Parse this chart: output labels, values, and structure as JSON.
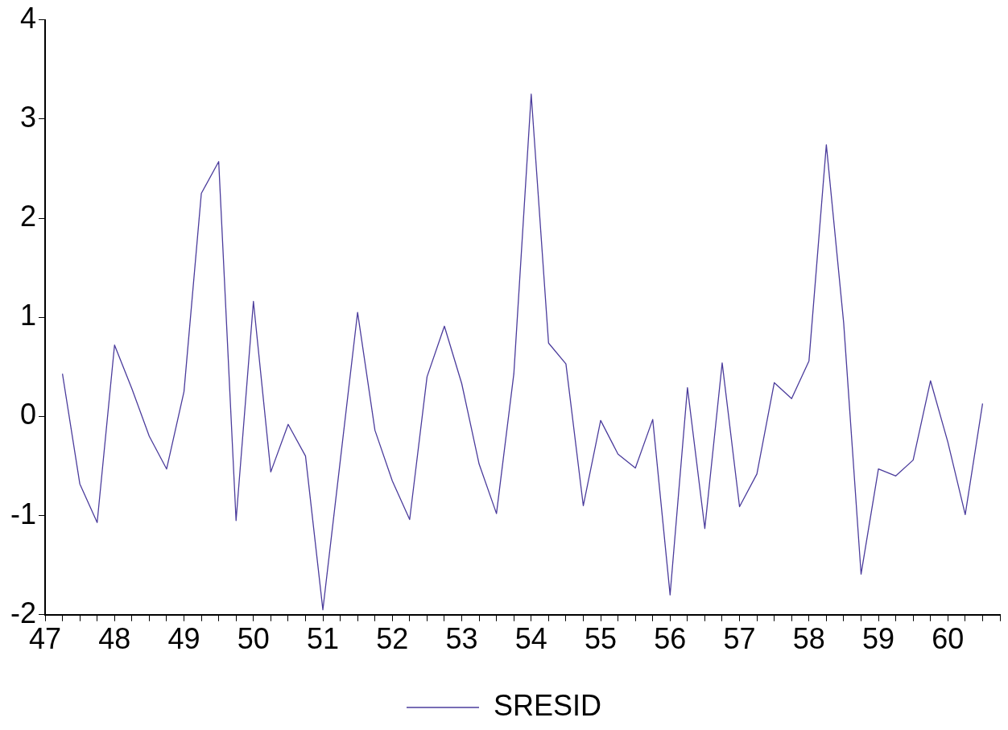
{
  "chart_data": {
    "type": "line",
    "x": [
      47.25,
      47.5,
      47.75,
      48,
      48.25,
      48.5,
      48.75,
      49,
      49.25,
      49.5,
      49.75,
      50,
      50.25,
      50.5,
      50.75,
      51,
      51.25,
      51.5,
      51.75,
      52,
      52.25,
      52.5,
      52.75,
      53,
      53.25,
      53.5,
      53.75,
      54,
      54.25,
      54.5,
      54.75,
      55,
      55.25,
      55.5,
      55.75,
      56,
      56.25,
      56.5,
      56.75,
      57,
      57.25,
      57.5,
      57.75,
      58,
      58.25,
      58.5,
      58.75,
      59,
      59.25,
      59.5,
      59.75,
      60,
      60.25,
      60.5
    ],
    "series": [
      {
        "name": "SRESID",
        "color": "#4b3c9c",
        "values": [
          0.43,
          -0.68,
          -1.07,
          0.72,
          0.28,
          -0.2,
          -0.53,
          0.25,
          2.25,
          2.57,
          -1.05,
          1.16,
          -0.56,
          -0.08,
          -0.4,
          -1.95,
          -0.45,
          1.05,
          -0.14,
          -0.65,
          -1.04,
          0.4,
          0.91,
          0.33,
          -0.48,
          -0.98,
          0.43,
          3.25,
          0.74,
          0.53,
          -0.9,
          -0.04,
          -0.38,
          -0.52,
          -0.03,
          -1.8,
          0.29,
          -1.13,
          0.54,
          -0.91,
          -0.58,
          0.34,
          0.18,
          0.56,
          2.74,
          0.94,
          -1.59,
          -0.53,
          -0.6,
          -0.44,
          0.36,
          -0.26,
          -0.99,
          0.13
        ]
      }
    ],
    "xlim": [
      47,
      60.75
    ],
    "xticks": [
      {
        "value": 47,
        "label": "47"
      },
      {
        "value": 47.25,
        "label": null
      },
      {
        "value": 47.5,
        "label": null
      },
      {
        "value": 47.75,
        "label": null
      },
      {
        "value": 48,
        "label": "48"
      },
      {
        "value": 48.25,
        "label": null
      },
      {
        "value": 48.5,
        "label": null
      },
      {
        "value": 48.75,
        "label": null
      },
      {
        "value": 49,
        "label": "49"
      },
      {
        "value": 49.25,
        "label": null
      },
      {
        "value": 49.5,
        "label": null
      },
      {
        "value": 49.75,
        "label": null
      },
      {
        "value": 50,
        "label": "50"
      },
      {
        "value": 50.25,
        "label": null
      },
      {
        "value": 50.5,
        "label": null
      },
      {
        "value": 50.75,
        "label": null
      },
      {
        "value": 51,
        "label": "51"
      },
      {
        "value": 51.25,
        "label": null
      },
      {
        "value": 51.5,
        "label": null
      },
      {
        "value": 51.75,
        "label": null
      },
      {
        "value": 52,
        "label": "52"
      },
      {
        "value": 52.25,
        "label": null
      },
      {
        "value": 52.5,
        "label": null
      },
      {
        "value": 52.75,
        "label": null
      },
      {
        "value": 53,
        "label": "53"
      },
      {
        "value": 53.25,
        "label": null
      },
      {
        "value": 53.5,
        "label": null
      },
      {
        "value": 53.75,
        "label": null
      },
      {
        "value": 54,
        "label": "54"
      },
      {
        "value": 54.25,
        "label": null
      },
      {
        "value": 54.5,
        "label": null
      },
      {
        "value": 54.75,
        "label": null
      },
      {
        "value": 55,
        "label": "55"
      },
      {
        "value": 55.25,
        "label": null
      },
      {
        "value": 55.5,
        "label": null
      },
      {
        "value": 55.75,
        "label": null
      },
      {
        "value": 56,
        "label": "56"
      },
      {
        "value": 56.25,
        "label": null
      },
      {
        "value": 56.5,
        "label": null
      },
      {
        "value": 56.75,
        "label": null
      },
      {
        "value": 57,
        "label": "57"
      },
      {
        "value": 57.25,
        "label": null
      },
      {
        "value": 57.5,
        "label": null
      },
      {
        "value": 57.75,
        "label": null
      },
      {
        "value": 58,
        "label": "58"
      },
      {
        "value": 58.25,
        "label": null
      },
      {
        "value": 58.5,
        "label": null
      },
      {
        "value": 58.75,
        "label": null
      },
      {
        "value": 59,
        "label": "59"
      },
      {
        "value": 59.25,
        "label": null
      },
      {
        "value": 59.5,
        "label": null
      },
      {
        "value": 59.75,
        "label": null
      },
      {
        "value": 60,
        "label": "60"
      },
      {
        "value": 60.25,
        "label": null
      },
      {
        "value": 60.5,
        "label": null
      },
      {
        "value": 60.75,
        "label": null
      }
    ],
    "ylim": [
      -2,
      4
    ],
    "yticks": [
      -2,
      -1,
      0,
      1,
      2,
      3,
      4
    ],
    "grid": false,
    "legend": "bottom",
    "marker": "none",
    "line_style": "solid"
  }
}
